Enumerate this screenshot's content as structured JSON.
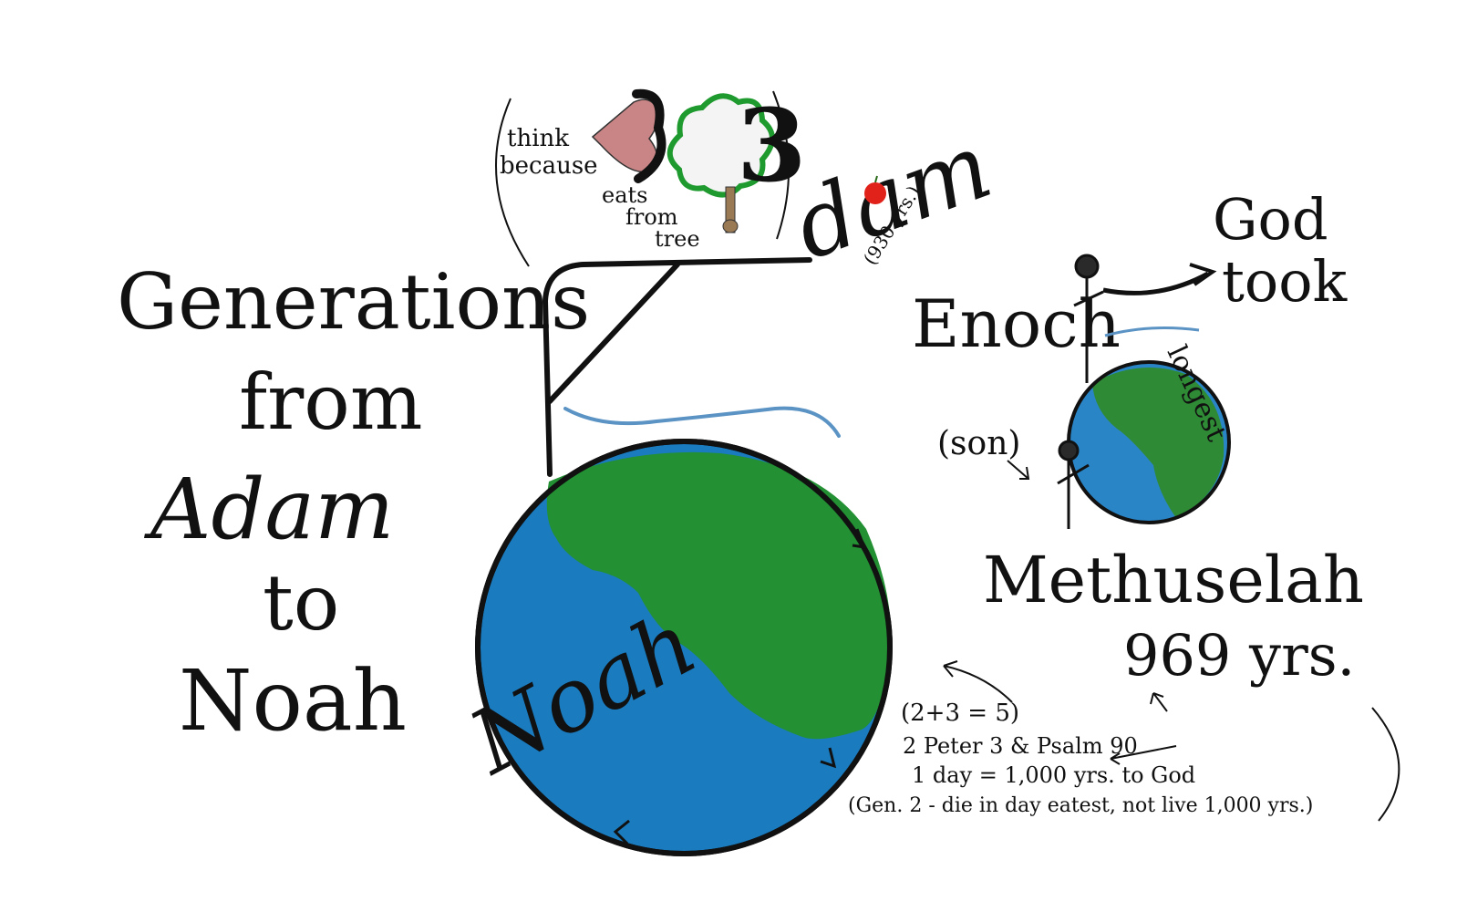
{
  "title": {
    "line1": "Generations",
    "line2": "from",
    "line3": "Adam",
    "line4": "to",
    "line5": "Noah"
  },
  "adam": {
    "name": "dam",
    "years": "(930 yrs.)"
  },
  "mnemonic": {
    "think_because": [
      "think",
      "because"
    ],
    "eats_from_tree": [
      "eats",
      "from",
      "tree"
    ],
    "digit_left": "3",
    "digit_right": "3"
  },
  "noah": {
    "name": "Noah"
  },
  "enoch": {
    "name": "Enoch",
    "god_took": [
      "God",
      "took"
    ],
    "son_label": "(son)",
    "longest": "longest"
  },
  "methuselah": {
    "name": "Methuselah",
    "years": "969 yrs."
  },
  "notes": {
    "line1": "(2+3 = 5)",
    "line2": "2 Peter 3  &  Psalm 90",
    "line3": "1 day =  1,000 yrs. to God",
    "line4": "(Gen. 2 - die in day eatest, not live 1,000 yrs.)"
  },
  "colors": {
    "ocean": "#1a7bbf",
    "land": "#229033",
    "ink": "#111111",
    "water_line": "#5a93c4",
    "lips": "#c98585",
    "tree_outline": "#1f9a2e",
    "trunk": "#9a7a55",
    "apple": "#e0221a"
  }
}
